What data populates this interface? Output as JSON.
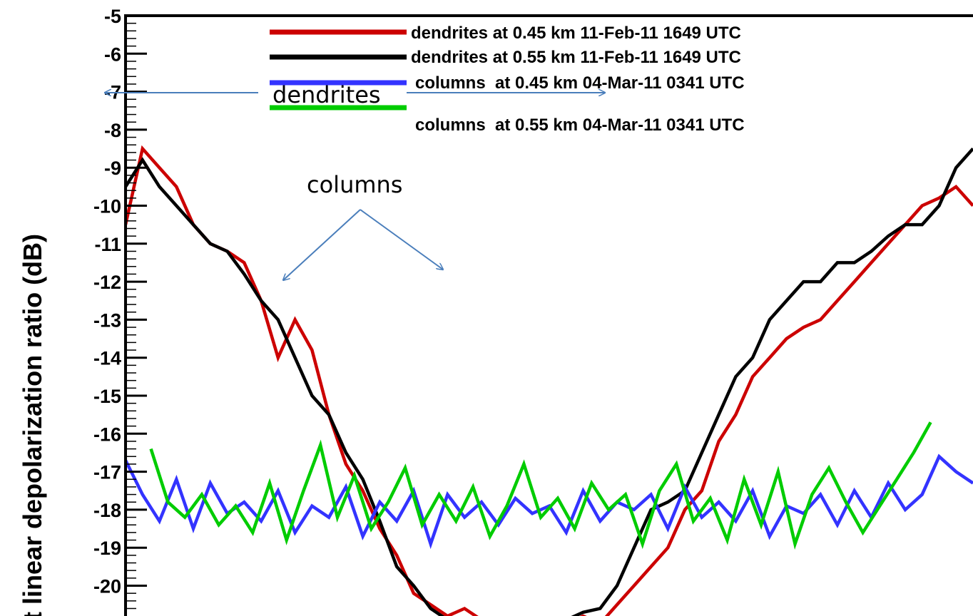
{
  "chart_data": {
    "type": "line",
    "title": "",
    "xlabel": "",
    "ylabel": "t linear depolarization ratio (dB)",
    "ylim": [
      -20.7,
      -5
    ],
    "yticks": [
      -5,
      -6,
      -7,
      -8,
      -9,
      -10,
      -11,
      -12,
      -13,
      -14,
      -15,
      -16,
      -17,
      -18,
      -19,
      -20
    ],
    "ytick_labels": [
      "-5",
      "-6",
      "-7",
      "-8",
      "-9",
      "-10",
      "-11",
      "-12",
      "-13",
      "-14",
      "-15",
      "-16",
      "-17",
      "-18",
      "-19",
      "-20"
    ],
    "xlim": [
      0,
      100
    ],
    "grid": false,
    "legend_position": "top-right",
    "colors": {
      "red": "#cc0000",
      "black": "#000000",
      "blue": "#3333ff",
      "green": "#00cc00"
    },
    "series": [
      {
        "name": "dendrites at 0.45 km 11-Feb-11 1649 UTC",
        "color": "#cc0000",
        "x": [
          0,
          2,
          4,
          6,
          8,
          10,
          12,
          14,
          16,
          18,
          20,
          22,
          24,
          26,
          28,
          30,
          32,
          34,
          36,
          38,
          40,
          42,
          44,
          46,
          48,
          50,
          52,
          54,
          56,
          58,
          60,
          62,
          64,
          66,
          68,
          70,
          72,
          74,
          76,
          78,
          80,
          82,
          84,
          86,
          88,
          90,
          92,
          94,
          96,
          98,
          100
        ],
        "y": [
          -10.5,
          -8.5,
          -9.0,
          -9.5,
          -10.5,
          -11.0,
          -11.2,
          -11.5,
          -12.5,
          -14.0,
          -13.0,
          -13.8,
          -15.5,
          -16.8,
          -17.5,
          -18.5,
          -19.2,
          -20.2,
          -20.5,
          -20.8,
          -20.6,
          -20.9,
          -21.0,
          -21.0,
          -21.0,
          -20.9,
          -21.0,
          -20.8,
          -21.0,
          -20.5,
          -20.0,
          -19.5,
          -19.0,
          -18.0,
          -17.5,
          -16.2,
          -15.5,
          -14.5,
          -14.0,
          -13.5,
          -13.2,
          -13.0,
          -12.5,
          -12.0,
          -11.5,
          -11.0,
          -10.5,
          -10.0,
          -9.8,
          -9.5,
          -10.0
        ]
      },
      {
        "name": "dendrites at 0.55 km 11-Feb-11 1649 UTC",
        "color": "#000000",
        "x": [
          0,
          2,
          4,
          6,
          8,
          10,
          12,
          14,
          16,
          18,
          20,
          22,
          24,
          26,
          28,
          30,
          32,
          34,
          36,
          38,
          40,
          42,
          44,
          46,
          48,
          50,
          52,
          54,
          56,
          58,
          60,
          62,
          64,
          66,
          68,
          70,
          72,
          74,
          76,
          78,
          80,
          82,
          84,
          86,
          88,
          90,
          92,
          94,
          96,
          98,
          100
        ],
        "y": [
          -9.5,
          -8.8,
          -9.5,
          -10.0,
          -10.5,
          -11.0,
          -11.2,
          -11.8,
          -12.5,
          -13.0,
          -14.0,
          -15.0,
          -15.5,
          -16.5,
          -17.2,
          -18.3,
          -19.5,
          -20.0,
          -20.6,
          -20.9,
          -21.0,
          -21.0,
          -21.0,
          -21.0,
          -21.0,
          -21.0,
          -20.9,
          -20.7,
          -20.6,
          -20.0,
          -19.0,
          -18.0,
          -17.8,
          -17.5,
          -16.5,
          -15.5,
          -14.5,
          -14.0,
          -13.0,
          -12.5,
          -12.0,
          -12.0,
          -11.5,
          -11.5,
          -11.2,
          -10.8,
          -10.5,
          -10.5,
          -10.0,
          -9.0,
          -8.5
        ]
      },
      {
        "name": "columns  at 0.45 km 04-Mar-11 0341 UTC",
        "color": "#3333ff",
        "x": [
          0,
          2,
          4,
          6,
          8,
          10,
          12,
          14,
          16,
          18,
          20,
          22,
          24,
          26,
          28,
          30,
          32,
          34,
          36,
          38,
          40,
          42,
          44,
          46,
          48,
          50,
          52,
          54,
          56,
          58,
          60,
          62,
          64,
          66,
          68,
          70,
          72,
          74,
          76,
          78,
          80,
          82,
          84,
          86,
          88,
          90,
          92,
          94,
          96,
          98,
          100
        ],
        "y": [
          -16.7,
          -17.6,
          -18.3,
          -17.2,
          -18.5,
          -17.3,
          -18.1,
          -17.8,
          -18.3,
          -17.5,
          -18.6,
          -17.9,
          -18.2,
          -17.4,
          -18.7,
          -17.8,
          -18.3,
          -17.5,
          -18.9,
          -17.6,
          -18.2,
          -17.8,
          -18.4,
          -17.7,
          -18.1,
          -17.9,
          -18.6,
          -17.5,
          -18.3,
          -17.8,
          -18.0,
          -17.6,
          -18.5,
          -17.4,
          -18.2,
          -17.8,
          -18.3,
          -17.5,
          -18.7,
          -17.9,
          -18.1,
          -17.6,
          -18.4,
          -17.5,
          -18.2,
          -17.3,
          -18.0,
          -17.6,
          -16.6,
          -17.0,
          -17.3
        ]
      },
      {
        "name": "columns  at 0.55 km 04-Mar-11 0341 UTC",
        "color": "#00cc00",
        "x": [
          3,
          5,
          7,
          9,
          11,
          13,
          15,
          17,
          19,
          21,
          23,
          25,
          27,
          29,
          31,
          33,
          35,
          37,
          39,
          41,
          43,
          45,
          47,
          49,
          51,
          53,
          55,
          57,
          59,
          61,
          63,
          65,
          67,
          69,
          71,
          73,
          75,
          77,
          79,
          81,
          83,
          85,
          87,
          89,
          91,
          93,
          95
        ],
        "y": [
          -16.4,
          -17.8,
          -18.2,
          -17.6,
          -18.4,
          -17.9,
          -18.6,
          -17.3,
          -18.8,
          -17.5,
          -16.3,
          -18.2,
          -17.1,
          -18.5,
          -17.8,
          -16.9,
          -18.4,
          -17.6,
          -18.3,
          -17.4,
          -18.7,
          -17.9,
          -16.8,
          -18.2,
          -17.7,
          -18.5,
          -17.3,
          -18.0,
          -17.6,
          -18.9,
          -17.5,
          -16.8,
          -18.3,
          -17.7,
          -18.8,
          -17.2,
          -18.4,
          -17.0,
          -18.9,
          -17.6,
          -16.9,
          -17.8,
          -18.6,
          -17.9,
          -17.2,
          -16.5,
          -15.7
        ]
      }
    ],
    "annotations": [
      {
        "text": "dendrites"
      },
      {
        "text": "columns"
      }
    ]
  }
}
